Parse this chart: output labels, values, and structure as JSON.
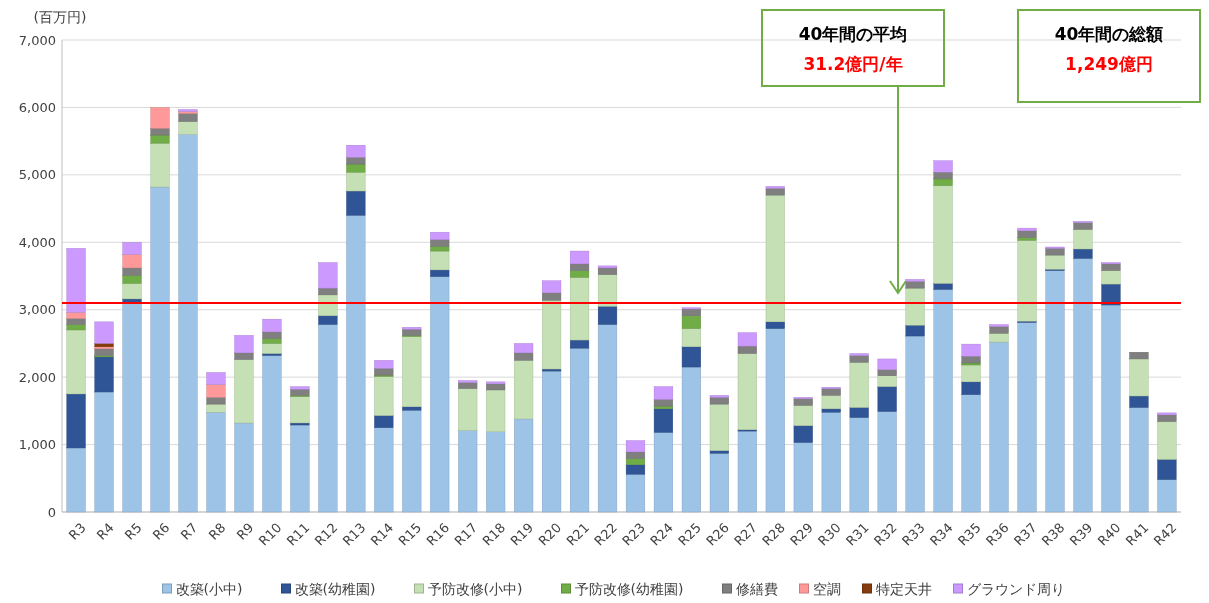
{
  "chart_data": {
    "type": "bar",
    "stacked": true,
    "ylabel": "(百万円)",
    "categories": [
      "R3",
      "R4",
      "R5",
      "R6",
      "R7",
      "R8",
      "R9",
      "R10",
      "R11",
      "R12",
      "R13",
      "R14",
      "R15",
      "R16",
      "R17",
      "R18",
      "R19",
      "R20",
      "R21",
      "R22",
      "R23",
      "R24",
      "R25",
      "R26",
      "R27",
      "R28",
      "R29",
      "R30",
      "R31",
      "R32",
      "R33",
      "R34",
      "R35",
      "R36",
      "R37",
      "R38",
      "R39",
      "R40",
      "R41",
      "R42"
    ],
    "series": [
      {
        "name": "改築(小中)",
        "color": "#9dc3e6",
        "values": [
          950,
          1780,
          3100,
          4820,
          5600,
          1480,
          1320,
          2320,
          1290,
          2780,
          4400,
          1250,
          1510,
          3490,
          1210,
          1190,
          1380,
          2090,
          2430,
          2780,
          560,
          1180,
          2150,
          870,
          1200,
          2720,
          1030,
          1480,
          1400,
          1490,
          2610,
          3300,
          1740,
          2520,
          2810,
          3580,
          3760,
          3070,
          1550,
          480
        ]
      },
      {
        "name": "改築(幼稚園)",
        "color": "#2f5597",
        "values": [
          800,
          520,
          60,
          0,
          0,
          0,
          0,
          30,
          30,
          130,
          360,
          180,
          50,
          100,
          0,
          0,
          0,
          30,
          120,
          270,
          140,
          350,
          300,
          40,
          20,
          100,
          250,
          50,
          150,
          370,
          160,
          90,
          190,
          0,
          20,
          20,
          140,
          310,
          170,
          300
        ]
      },
      {
        "name": "予防改修(小中)",
        "color": "#c5e0b4",
        "values": [
          950,
          0,
          230,
          650,
          190,
          120,
          940,
          150,
          390,
          310,
          280,
          580,
          1040,
          280,
          620,
          620,
          870,
          1020,
          930,
          470,
          0,
          0,
          270,
          690,
          1130,
          1880,
          300,
          200,
          670,
          160,
          550,
          1450,
          250,
          130,
          1200,
          210,
          290,
          200,
          550,
          560
        ]
      },
      {
        "name": "予防改修(幼稚園)",
        "color": "#70ad47",
        "values": [
          80,
          20,
          120,
          120,
          0,
          0,
          0,
          70,
          20,
          0,
          120,
          20,
          20,
          70,
          0,
          0,
          0,
          0,
          100,
          0,
          90,
          40,
          190,
          0,
          0,
          0,
          0,
          0,
          0,
          0,
          0,
          100,
          30,
          0,
          40,
          0,
          0,
          0,
          0,
          0
        ]
      },
      {
        "name": "修繕費",
        "color": "#7f7f7f",
        "values": [
          90,
          100,
          110,
          100,
          120,
          100,
          100,
          100,
          90,
          100,
          100,
          100,
          90,
          100,
          90,
          90,
          110,
          110,
          100,
          100,
          100,
          100,
          100,
          100,
          110,
          100,
          100,
          100,
          100,
          90,
          100,
          100,
          100,
          100,
          100,
          100,
          100,
          100,
          100,
          100
        ]
      },
      {
        "name": "空調",
        "color": "#ff9999",
        "values": [
          90,
          30,
          200,
          310,
          30,
          190,
          0,
          0,
          0,
          0,
          0,
          0,
          0,
          0,
          0,
          0,
          0,
          0,
          0,
          0,
          0,
          0,
          0,
          0,
          0,
          0,
          0,
          0,
          0,
          0,
          0,
          0,
          0,
          0,
          0,
          0,
          0,
          0,
          0,
          0
        ]
      },
      {
        "name": "特定天井",
        "color": "#843c0c",
        "values": [
          0,
          50,
          0,
          0,
          0,
          0,
          0,
          0,
          0,
          0,
          0,
          0,
          0,
          0,
          0,
          0,
          0,
          0,
          0,
          0,
          0,
          0,
          0,
          0,
          0,
          0,
          0,
          0,
          0,
          0,
          0,
          0,
          0,
          0,
          0,
          0,
          0,
          0,
          0,
          0
        ]
      },
      {
        "name": "グラウンド周り",
        "color": "#cc99ff",
        "values": [
          950,
          320,
          180,
          0,
          30,
          180,
          260,
          190,
          40,
          380,
          180,
          120,
          30,
          110,
          30,
          30,
          140,
          180,
          190,
          30,
          170,
          190,
          20,
          30,
          200,
          30,
          20,
          20,
          30,
          160,
          30,
          170,
          180,
          30,
          40,
          20,
          20,
          20,
          0,
          30
        ]
      }
    ],
    "ylim": [
      0,
      7000
    ],
    "yticks": [
      0,
      {
        "value": 1000,
        "label": "1,000"
      },
      {
        "value": 2000,
        "label": "2,000"
      },
      {
        "value": 3000,
        "label": "3,000"
      },
      {
        "value": 4000,
        "label": "4,000"
      },
      {
        "value": 5000,
        "label": "5,000"
      },
      {
        "value": 6000,
        "label": "6,000"
      },
      {
        "value": 7000,
        "label": "7,000"
      }
    ],
    "grid": "y",
    "legend": "bottom",
    "ref_lines": [
      {
        "axis": "y",
        "value": 3100,
        "color": "#ff0000"
      }
    ],
    "annotations": [
      "40年間の平均",
      "31.2億円/年",
      "40年間の総額",
      "1,249億円"
    ]
  }
}
